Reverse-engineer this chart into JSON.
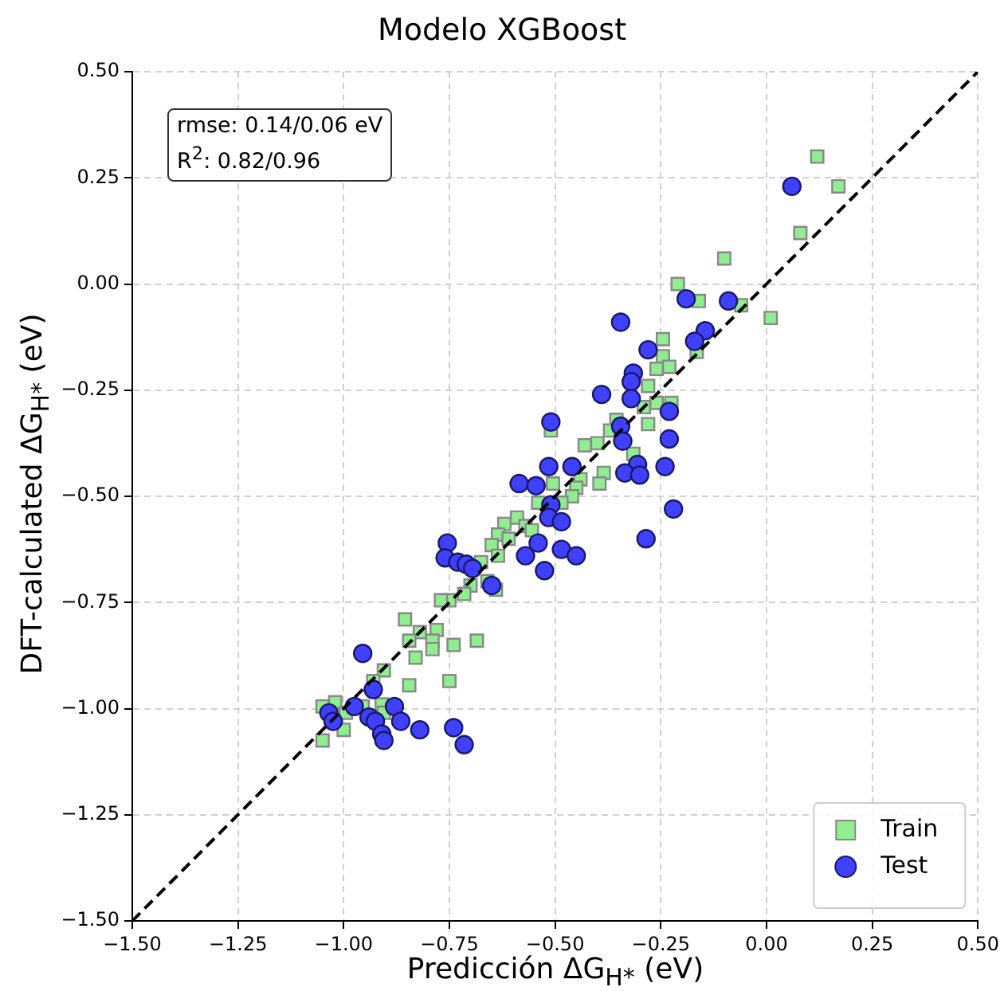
{
  "chart_data": {
    "type": "scatter",
    "title": "Modelo XGBoost",
    "xlabel": "Predicción ΔG$_{H*}$ (eV)",
    "ylabel": "DFT-calculated ΔG$_{H*}$ (eV)",
    "annotations": [
      "rmse: 0.14/0.06 eV",
      "R$^{2}$: 0.82/0.96"
    ],
    "xlim": [
      -1.5,
      0.5
    ],
    "ylim": [
      -1.5,
      0.5
    ],
    "xticks": [
      {
        "value": -1.5,
        "label": "−1.50"
      },
      {
        "value": -1.25,
        "label": "−1.25"
      },
      {
        "value": -1,
        "label": "−1.00"
      },
      {
        "value": -0.75,
        "label": "−0.75"
      },
      {
        "value": -0.5,
        "label": "−0.50"
      },
      {
        "value": -0.25,
        "label": "−0.25"
      },
      {
        "value": 0,
        "label": "0.00"
      },
      {
        "value": 0.25,
        "label": "0.25"
      },
      {
        "value": 0.5,
        "label": "0.50"
      }
    ],
    "yticks": [
      {
        "value": -1.5,
        "label": "−1.50"
      },
      {
        "value": -1.25,
        "label": "−1.25"
      },
      {
        "value": -1,
        "label": "−1.00"
      },
      {
        "value": -0.75,
        "label": "−0.75"
      },
      {
        "value": -0.5,
        "label": "−0.50"
      },
      {
        "value": -0.25,
        "label": "−0.25"
      },
      {
        "value": 0,
        "label": "0.00"
      },
      {
        "value": 0.25,
        "label": "0.25"
      },
      {
        "value": 0.5,
        "label": "0.50"
      }
    ],
    "grid": true,
    "legend": "bottom right",
    "series": [
      {
        "name": "Train",
        "color": "#90ee90",
        "marker": "square",
        "x": [
          0.12,
          0.17,
          0.08,
          -0.1,
          -0.21,
          -0.06,
          0.01,
          -0.16,
          -0.245,
          -0.245,
          -0.26,
          -0.23,
          -0.165,
          -0.28,
          -0.225,
          -0.26,
          -0.29,
          -0.28,
          -0.355,
          -0.37,
          -0.4,
          -0.43,
          -0.315,
          -0.385,
          -0.44,
          -0.45,
          -0.51,
          -0.395,
          -0.505,
          -0.46,
          -0.485,
          -0.54,
          -0.59,
          -0.62,
          -0.57,
          -0.555,
          -0.635,
          -0.61,
          -0.65,
          -0.635,
          -0.675,
          -0.66,
          -0.7,
          -0.64,
          -0.715,
          -0.75,
          -0.77,
          -0.855,
          -0.82,
          -0.78,
          -0.845,
          -0.79,
          -0.74,
          -0.685,
          -0.83,
          -0.79,
          -0.905,
          -0.75,
          -0.845,
          -0.93,
          -1.05,
          -1.02,
          -0.995,
          -0.955,
          -0.91,
          -1.0,
          -1.05,
          -0.905
        ],
        "values": [
          0.3,
          0.23,
          0.12,
          0.06,
          0.0,
          -0.05,
          -0.08,
          -0.04,
          -0.13,
          -0.17,
          -0.2,
          -0.195,
          -0.16,
          -0.24,
          -0.28,
          -0.28,
          -0.29,
          -0.33,
          -0.32,
          -0.345,
          -0.375,
          -0.38,
          -0.4,
          -0.445,
          -0.46,
          -0.48,
          -0.345,
          -0.47,
          -0.47,
          -0.5,
          -0.515,
          -0.515,
          -0.55,
          -0.565,
          -0.57,
          -0.58,
          -0.59,
          -0.6,
          -0.615,
          -0.64,
          -0.655,
          -0.7,
          -0.71,
          -0.72,
          -0.73,
          -0.745,
          -0.745,
          -0.79,
          -0.82,
          -0.815,
          -0.84,
          -0.84,
          -0.85,
          -0.84,
          -0.88,
          -0.86,
          -0.91,
          -0.935,
          -0.945,
          -0.935,
          -0.995,
          -0.985,
          -1.01,
          -0.995,
          -0.99,
          -1.05,
          -1.075,
          -1.01
        ]
      },
      {
        "name": "Test",
        "color": "#4040ff",
        "marker": "circle",
        "x": [
          0.06,
          -0.19,
          -0.09,
          -0.145,
          -0.17,
          -0.345,
          -0.28,
          -0.315,
          -0.32,
          -0.39,
          -0.32,
          -0.23,
          -0.345,
          -0.23,
          -0.305,
          -0.335,
          -0.3,
          -0.24,
          -0.34,
          -0.22,
          -0.285,
          -0.51,
          -0.515,
          -0.46,
          -0.585,
          -0.545,
          -0.51,
          -0.515,
          -0.485,
          -0.54,
          -0.57,
          -0.485,
          -0.45,
          -0.525,
          -0.755,
          -0.76,
          -0.73,
          -0.71,
          -0.695,
          -0.65,
          -0.955,
          -0.93,
          -1.035,
          -1.025,
          -0.975,
          -0.94,
          -0.925,
          -0.88,
          -0.865,
          -0.91,
          -0.905,
          -0.82,
          -0.74,
          -0.715
        ],
        "values": [
          0.23,
          -0.035,
          -0.04,
          -0.11,
          -0.135,
          -0.09,
          -0.155,
          -0.21,
          -0.23,
          -0.26,
          -0.27,
          -0.3,
          -0.335,
          -0.365,
          -0.425,
          -0.445,
          -0.45,
          -0.43,
          -0.37,
          -0.53,
          -0.6,
          -0.325,
          -0.43,
          -0.43,
          -0.47,
          -0.475,
          -0.52,
          -0.55,
          -0.56,
          -0.61,
          -0.64,
          -0.625,
          -0.64,
          -0.675,
          -0.61,
          -0.645,
          -0.655,
          -0.66,
          -0.67,
          -0.71,
          -0.87,
          -0.955,
          -1.01,
          -1.03,
          -0.995,
          -1.02,
          -1.03,
          -0.995,
          -1.03,
          -1.06,
          -1.075,
          -1.05,
          -1.045,
          -1.085
        ]
      },
      {
        "type": "line",
        "color": "#000000",
        "line_style": "dashed",
        "marker": "none",
        "x": [
          -1.5,
          0.5
        ],
        "values": [
          -1.5,
          0.5
        ]
      }
    ]
  }
}
